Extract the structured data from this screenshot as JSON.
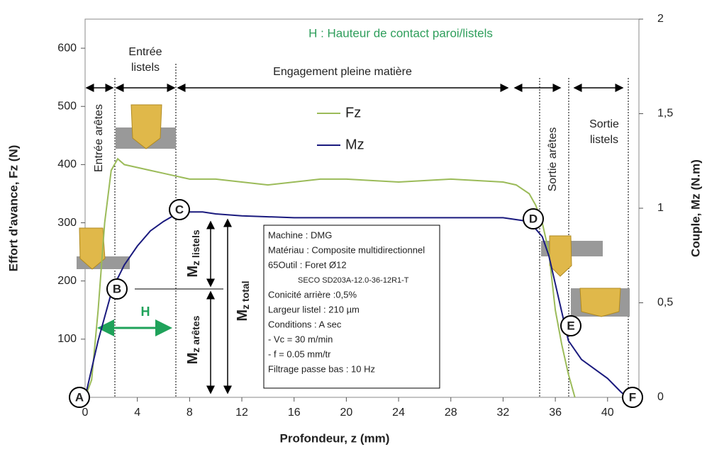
{
  "chart_data": {
    "type": "line",
    "xlabel": "Profondeur, z (mm)",
    "ylabel": "Effort d'avance, Fz (N)",
    "y2label": "Couple, Mz (N.m)",
    "xlim": [
      0,
      42.4
    ],
    "xticks": [
      0,
      4,
      8,
      12,
      16,
      20,
      24,
      28,
      32,
      36,
      40
    ],
    "ylim": [
      0,
      650
    ],
    "yticks": [
      100,
      200,
      300,
      400,
      500,
      600
    ],
    "y2lim": [
      0,
      2
    ],
    "y2ticks": [
      0,
      {
        "value": 0.5,
        "label": "0,5"
      },
      1,
      {
        "value": 1.5,
        "label": "1,5"
      },
      2
    ],
    "grid": false,
    "series": [
      {
        "name": "Fz",
        "color": "#9bbb59",
        "axis": "y",
        "x": [
          0,
          0.5,
          1,
          1.5,
          2,
          2.5,
          3,
          4,
          5,
          6,
          7,
          8,
          10,
          12,
          14,
          16,
          18,
          20,
          24,
          28,
          32,
          33,
          34,
          34.5,
          35,
          35.5,
          36,
          36.5,
          37,
          37.5
        ],
        "values": [
          0,
          30,
          150,
          300,
          390,
          410,
          400,
          395,
          390,
          385,
          380,
          375,
          375,
          370,
          365,
          370,
          375,
          375,
          370,
          375,
          370,
          365,
          350,
          330,
          300,
          250,
          150,
          90,
          40,
          0
        ]
      },
      {
        "name": "Mz",
        "color": "#1a1a7e",
        "axis": "y2",
        "x": [
          0,
          1,
          2,
          2.5,
          3,
          4,
          5,
          6,
          7,
          8,
          9,
          10,
          12,
          16,
          20,
          24,
          28,
          32,
          34,
          35,
          35.5,
          36,
          36.5,
          37,
          38,
          40,
          41,
          41.5
        ],
        "values": [
          0,
          0.3,
          0.55,
          0.63,
          0.7,
          0.8,
          0.88,
          0.93,
          0.97,
          0.98,
          0.98,
          0.97,
          0.96,
          0.95,
          0.95,
          0.95,
          0.95,
          0.95,
          0.93,
          0.85,
          0.75,
          0.6,
          0.45,
          0.3,
          0.2,
          0.1,
          0.03,
          0
        ]
      }
    ],
    "annotations": {
      "contact": "H : Hauteur de contact paroi/listels",
      "entree_listels": "Entrée listels",
      "engagement": "Engagement pleine matière",
      "sortie_listels": "Sortie listels",
      "entree_aretes": "Entrée arêtes",
      "sortie_aretes": "Sortie arêtes",
      "h": "H"
    },
    "points": [
      "A",
      "B",
      "C",
      "D",
      "E",
      "F"
    ],
    "moments": [
      {
        "main": "M",
        "sub": "z listels"
      },
      {
        "main": "M",
        "sub": "z arêtes"
      },
      {
        "main": "M",
        "sub": "z total"
      }
    ],
    "info": [
      "Machine : DMG",
      "Matériau : Composite multidirectionnel",
      "65Outil : Foret Ø12",
      "SECO SD203A-12.0-36-12R1-T",
      "Conicité arrière :0,5%",
      "Largeur listel : 210 µm",
      "Conditions : A sec",
      "- Vc = 30  m/min",
      "-  f = 0.05 mm/tr",
      "Filtrage  passe bas : 10 Hz"
    ]
  }
}
